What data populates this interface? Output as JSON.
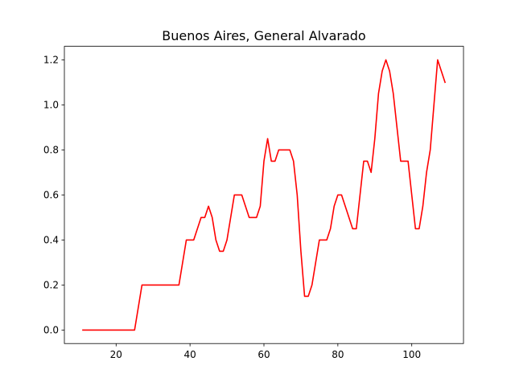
{
  "chart_data": {
    "type": "line",
    "title": "Buenos Aires, General Alvarado",
    "xlabel": "",
    "ylabel": "",
    "xlim": [
      6,
      114
    ],
    "ylim": [
      -0.06,
      1.26
    ],
    "x_ticks": [
      20,
      40,
      60,
      80,
      100
    ],
    "y_ticks": [
      0.0,
      0.2,
      0.4,
      0.6,
      0.8,
      1.0,
      1.2
    ],
    "x_tick_labels": [
      "20",
      "40",
      "60",
      "80",
      "100"
    ],
    "y_tick_labels": [
      "0.0",
      "0.2",
      "0.4",
      "0.6",
      "0.8",
      "1.0",
      "1.2"
    ],
    "grid": false,
    "series": [
      {
        "color": "#ff0000",
        "x": [
          11,
          12,
          13,
          14,
          15,
          16,
          17,
          18,
          19,
          20,
          21,
          22,
          23,
          24,
          25,
          26,
          27,
          28,
          29,
          30,
          31,
          32,
          33,
          34,
          35,
          36,
          37,
          38,
          39,
          40,
          41,
          42,
          43,
          44,
          45,
          46,
          47,
          48,
          49,
          50,
          51,
          52,
          53,
          54,
          55,
          56,
          57,
          58,
          59,
          60,
          61,
          62,
          63,
          64,
          65,
          66,
          67,
          68,
          69,
          70,
          71,
          72,
          73,
          74,
          75,
          76,
          77,
          78,
          79,
          80,
          81,
          82,
          83,
          84,
          85,
          86,
          87,
          88,
          89,
          90,
          91,
          92,
          93,
          94,
          95,
          96,
          97,
          98,
          99,
          100,
          101,
          102,
          103,
          104,
          105,
          106,
          107,
          108,
          109
        ],
        "y": [
          0,
          0,
          0,
          0,
          0,
          0,
          0,
          0,
          0,
          0,
          0,
          0,
          0,
          0,
          0,
          0.1,
          0.2,
          0.2,
          0.2,
          0.2,
          0.2,
          0.2,
          0.2,
          0.2,
          0.2,
          0.2,
          0.2,
          0.3,
          0.4,
          0.4,
          0.4,
          0.45,
          0.5,
          0.5,
          0.55,
          0.5,
          0.4,
          0.35,
          0.35,
          0.4,
          0.5,
          0.6,
          0.6,
          0.6,
          0.55,
          0.5,
          0.5,
          0.5,
          0.55,
          0.75,
          0.85,
          0.75,
          0.75,
          0.8,
          0.8,
          0.8,
          0.8,
          0.75,
          0.6,
          0.35,
          0.15,
          0.15,
          0.2,
          0.3,
          0.4,
          0.4,
          0.4,
          0.45,
          0.55,
          0.6,
          0.6,
          0.55,
          0.5,
          0.45,
          0.45,
          0.6,
          0.75,
          0.75,
          0.7,
          0.85,
          1.05,
          1.15,
          1.2,
          1.15,
          1.05,
          0.9,
          0.75,
          0.75,
          0.75,
          0.6,
          0.45,
          0.45,
          0.55,
          0.7,
          0.8,
          1.0,
          1.2,
          1.15,
          1.1
        ]
      }
    ]
  }
}
